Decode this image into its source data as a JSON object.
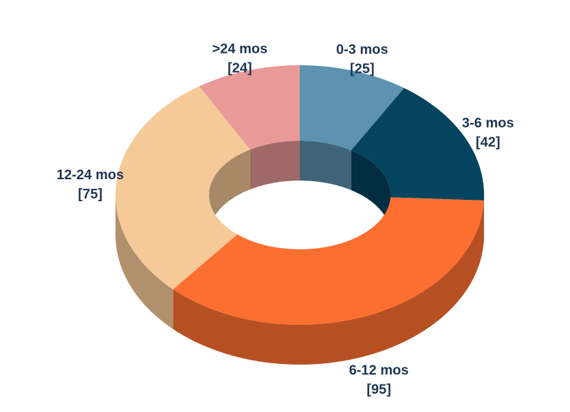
{
  "chart_data": {
    "type": "pie",
    "variant": "3d-donut",
    "title": "",
    "categories": [
      "0-3 mos",
      "3-6 mos",
      "6-12 mos",
      "12-24 mos",
      ">24 mos"
    ],
    "values": [
      25,
      42,
      95,
      75,
      24
    ],
    "labels": [
      "[25]",
      "[42]",
      "[95]",
      "[75]",
      "[24]"
    ],
    "colors": [
      "#5d93b0",
      "#05445f",
      "#fd6f31",
      "#f6ca98",
      "#e99a98"
    ],
    "legend": "none",
    "start": "12 o'clock, clockwise"
  }
}
